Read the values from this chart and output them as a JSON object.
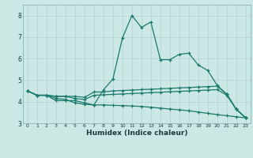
{
  "xlabel": "Humidex (Indice chaleur)",
  "background_color": "#cce8e4",
  "grid_color": "#aed4d0",
  "line_color": "#1a7a6e",
  "x_values": [
    0,
    1,
    2,
    3,
    4,
    5,
    6,
    7,
    8,
    9,
    10,
    11,
    12,
    13,
    14,
    15,
    16,
    17,
    18,
    19,
    20,
    21,
    22,
    23
  ],
  "line1": [
    4.5,
    4.3,
    4.3,
    4.05,
    4.05,
    4.05,
    3.95,
    3.85,
    4.55,
    5.05,
    6.95,
    8.0,
    7.45,
    7.7,
    5.95,
    5.95,
    6.2,
    6.25,
    5.7,
    5.45,
    4.75,
    4.35,
    3.65,
    3.25
  ],
  "line2": [
    4.5,
    4.3,
    4.3,
    4.25,
    4.25,
    4.25,
    4.2,
    4.45,
    4.45,
    4.5,
    4.52,
    4.54,
    4.56,
    4.58,
    4.6,
    4.62,
    4.64,
    4.66,
    4.68,
    4.7,
    4.72,
    4.35,
    3.65,
    3.25
  ],
  "line3": [
    4.5,
    4.3,
    4.3,
    4.25,
    4.25,
    4.15,
    4.1,
    4.3,
    4.32,
    4.34,
    4.36,
    4.38,
    4.4,
    4.42,
    4.44,
    4.46,
    4.48,
    4.5,
    4.52,
    4.54,
    4.56,
    4.3,
    3.65,
    3.25
  ],
  "line4": [
    4.5,
    4.3,
    4.3,
    4.15,
    4.1,
    3.95,
    3.88,
    3.85,
    3.85,
    3.83,
    3.82,
    3.8,
    3.78,
    3.74,
    3.7,
    3.66,
    3.62,
    3.58,
    3.52,
    3.46,
    3.4,
    3.35,
    3.3,
    3.25
  ],
  "ylim": [
    3.0,
    8.5
  ],
  "xlim": [
    -0.5,
    23.5
  ],
  "yticks": [
    3,
    4,
    5,
    6,
    7,
    8
  ],
  "xticks": [
    0,
    1,
    2,
    3,
    4,
    5,
    6,
    7,
    8,
    9,
    10,
    11,
    12,
    13,
    14,
    15,
    16,
    17,
    18,
    19,
    20,
    21,
    22,
    23
  ]
}
